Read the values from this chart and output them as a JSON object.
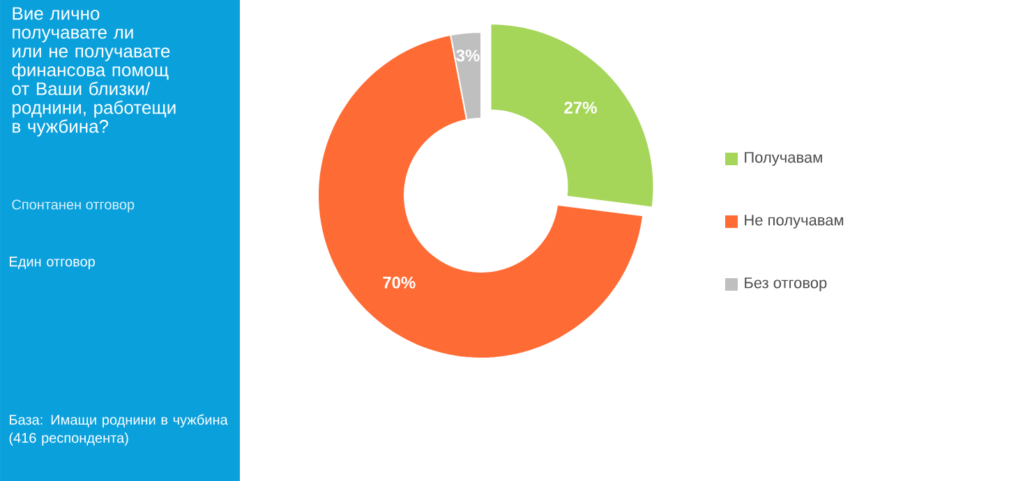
{
  "chart_data": {
    "type": "donut",
    "title": "Вие лично получавате ли или не получавате финансова помощ от Ваши близки/ роднини, работещи в чужбина?",
    "subtitle": "Спонтанен отговор",
    "annotations": [
      "Един отговор",
      "База: Имащи роднини в чужбина (416 респондента)"
    ],
    "categories": [
      "Получавам",
      "Не получавам",
      "Без отговор"
    ],
    "values": [
      27,
      70,
      3
    ],
    "colors": [
      "#a5d65a",
      "#ff6b35",
      "#bfbfbf"
    ],
    "value_labels": [
      "27%",
      "70%",
      "3%"
    ],
    "legend": "right"
  }
}
